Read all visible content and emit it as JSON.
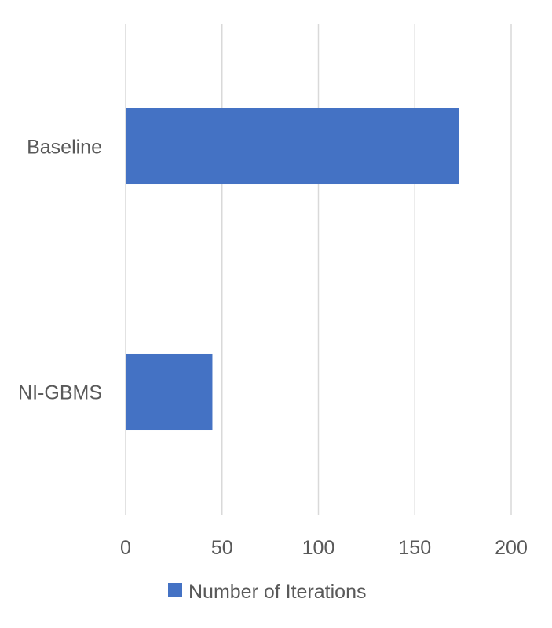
{
  "chart_data": {
    "type": "bar",
    "orientation": "horizontal",
    "categories": [
      "Baseline",
      "NI-GBMS"
    ],
    "series": [
      {
        "name": "Number of Iterations",
        "values": [
          173,
          45
        ],
        "color": "#4472c4"
      }
    ],
    "xlim": [
      0,
      200
    ],
    "x_ticks": [
      0,
      50,
      100,
      150,
      200
    ],
    "x_tick_labels": [
      "0",
      "50",
      "100",
      "150",
      "200"
    ],
    "grid": "vertical",
    "legend": "bottom",
    "title": "",
    "xlabel": "",
    "ylabel": ""
  }
}
